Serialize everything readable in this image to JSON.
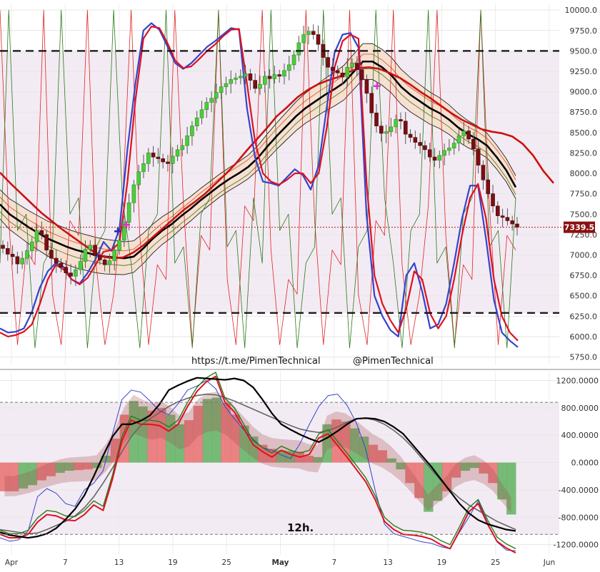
{
  "chart_data": [
    {
      "type": "candlestick",
      "timeframe_label": "12h.",
      "watermark_left": "https://t.me/PimenTechnical",
      "watermark_right": "@PimenTechnical",
      "last_price_label": "7339.5",
      "ylim": [
        5650,
        10080
      ],
      "y_ticks": [
        "10000.0",
        "9750.0",
        "9500.0",
        "9250.0",
        "9000.0",
        "8750.0",
        "8500.0",
        "8250.0",
        "8000.0",
        "7750.0",
        "7500.0",
        "7250.0",
        "7000.0",
        "6750.0",
        "6500.0",
        "6250.0",
        "6000.0",
        "5750.0"
      ],
      "y_tick_values": [
        10000,
        9750,
        9500,
        9250,
        9000,
        8750,
        8500,
        8250,
        8000,
        7750,
        7500,
        7250,
        7000,
        6750,
        6500,
        6250,
        6000,
        5750
      ],
      "x_ticks": [
        "Apr",
        "7",
        "13",
        "19",
        "25",
        "May",
        "7",
        "13",
        "19",
        "25",
        "Jun"
      ],
      "x_tick_days": [
        1,
        7,
        13,
        19,
        25,
        31,
        37,
        43,
        49,
        55,
        61
      ],
      "horizontal_levels": [
        9500,
        6290
      ],
      "last_price": 7339.5,
      "colors": {
        "up": "#4ccd3c",
        "down": "#7a0f14",
        "ma_black": "#000000",
        "ma_red": "#cc1111",
        "stoch_blue": "#3344cc",
        "stoch_red": "#dd1122",
        "green_line": "#2a7a1a",
        "zone": "#f3ebf3",
        "band_fill": "#f6dcc6"
      },
      "candles_close": [
        7080,
        7010,
        6980,
        6890,
        6960,
        7050,
        7160,
        7300,
        7250,
        7060,
        6960,
        6900,
        6850,
        6780,
        6740,
        6820,
        6920,
        7070,
        7120,
        6990,
        6940,
        6880,
        6930,
        7060,
        7180,
        7400,
        7640,
        7860,
        8020,
        8120,
        8250,
        8200,
        8180,
        8140,
        8120,
        8210,
        8290,
        8340,
        8460,
        8580,
        8680,
        8780,
        8870,
        8920,
        8990,
        9060,
        9100,
        9150,
        9170,
        9190,
        9220,
        9140,
        9040,
        9090,
        9190,
        9160,
        9210,
        9190,
        9260,
        9330,
        9450,
        9600,
        9700,
        9740,
        9700,
        9580,
        9420,
        9300,
        9260,
        9230,
        9180,
        9300,
        9350,
        9270,
        9150,
        8980,
        8740,
        8580,
        8490,
        8510,
        8570,
        8660,
        8640,
        8480,
        8440,
        8380,
        8340,
        8290,
        8200,
        8160,
        8220,
        8280,
        8310,
        8370,
        8460,
        8520,
        8420,
        8300,
        8100,
        7920,
        7750,
        7600,
        7480,
        7460,
        7420,
        7380,
        7339.5
      ],
      "series_names": [
        "upper band",
        "basis",
        "lower band",
        "MA red",
        "stoch blue",
        "stoch red",
        "spike red",
        "spike green"
      ],
      "basis": [
        7620,
        7500,
        7420,
        7340,
        7270,
        7200,
        7150,
        7100,
        7060,
        7030,
        7000,
        6980,
        6970,
        6960,
        6980,
        7080,
        7200,
        7300,
        7380,
        7480,
        7570,
        7670,
        7760,
        7850,
        7930,
        8000,
        8080,
        8190,
        8330,
        8460,
        8580,
        8700,
        8800,
        8880,
        8960,
        9030,
        9110,
        9240,
        9370,
        9370,
        9300,
        9200,
        9060,
        8960,
        8880,
        8800,
        8740,
        8660,
        8560,
        8480,
        8420,
        8340,
        8200,
        8040,
        7830
      ],
      "ma_red": [
        8010,
        7880,
        7760,
        7640,
        7520,
        7420,
        7320,
        7230,
        7140,
        7050,
        6980,
        6960,
        6970,
        7030,
        7120,
        7230,
        7340,
        7450,
        7560,
        7650,
        7750,
        7870,
        7990,
        8120,
        8270,
        8410,
        8550,
        8700,
        8810,
        8930,
        9020,
        9090,
        9140,
        9180,
        9240,
        9290,
        9300,
        9280,
        9230,
        9170,
        9090,
        9000,
        8920,
        8830,
        8740,
        8660,
        8600,
        8540,
        8510,
        8490,
        8450,
        8360,
        8220,
        8030,
        7880
      ],
      "stoch_blue": [
        6100,
        6050,
        6060,
        6100,
        6300,
        6600,
        6800,
        6900,
        6850,
        6700,
        6650,
        6780,
        6950,
        7160,
        7050,
        7320,
        8300,
        9100,
        9750,
        9840,
        9760,
        9560,
        9350,
        9280,
        9350,
        9450,
        9550,
        9620,
        9700,
        9780,
        9760,
        8800,
        8200,
        7900,
        7880,
        7850,
        7950,
        8050,
        7980,
        7800,
        8100,
        8800,
        9480,
        9700,
        9720,
        9540,
        7500,
        6500,
        6250,
        6080,
        6000,
        6750,
        6900,
        6550,
        6100,
        6150,
        6400,
        6900,
        7450,
        7850,
        7850,
        7200,
        6450,
        6050,
        5950,
        5870
      ],
      "stoch_red": [
        6050,
        6000,
        6020,
        6060,
        6150,
        6400,
        6700,
        6880,
        6820,
        6700,
        6640,
        6720,
        6880,
        7040,
        7060,
        7150,
        7900,
        8900,
        9650,
        9800,
        9780,
        9600,
        9380,
        9290,
        9310,
        9400,
        9500,
        9580,
        9680,
        9760,
        9770,
        9100,
        8400,
        8000,
        7900,
        7860,
        7920,
        8000,
        8000,
        7880,
        8000,
        8550,
        9300,
        9620,
        9700,
        9650,
        7900,
        6750,
        6400,
        6200,
        6050,
        6350,
        6800,
        6700,
        6280,
        6100,
        6250,
        6700,
        7250,
        7700,
        7870,
        7450,
        6700,
        6250,
        6050,
        5950
      ],
      "oscillator": {
        "ylim": [
          -1350,
          1320
        ],
        "y_ticks": [
          "1200.0000",
          "800.0000",
          "400.0000",
          "0.0000",
          "-400.0000",
          "-800.0000",
          "-1200.0000"
        ],
        "y_tick_values": [
          1200,
          800,
          400,
          0,
          -400,
          -800,
          -1200
        ],
        "levels": [
          880,
          -1050
        ],
        "histogram": [
          -420,
          -420,
          -380,
          -330,
          -260,
          -200,
          -150,
          -120,
          -110,
          -100,
          -80,
          100,
          350,
          700,
          900,
          820,
          760,
          800,
          700,
          560,
          620,
          830,
          930,
          950,
          870,
          700,
          540,
          380,
          260,
          200,
          180,
          170,
          160,
          100,
          80,
          560,
          630,
          600,
          500,
          380,
          260,
          180,
          60,
          -100,
          -300,
          -520,
          -720,
          -560,
          -420,
          -220,
          -120,
          -80,
          -160,
          -300,
          -540,
          -760
        ],
        "black_line": [
          -1020,
          -1060,
          -1080,
          -1100,
          -1080,
          -1040,
          -960,
          -830,
          -680,
          -480,
          -200,
          100,
          380,
          560,
          560,
          610,
          690,
          850,
          1060,
          1130,
          1190,
          1240,
          1230,
          1220,
          1210,
          1230,
          1200,
          1100,
          920,
          720,
          560,
          480,
          410,
          350,
          300,
          370,
          460,
          560,
          640,
          650,
          640,
          600,
          520,
          420,
          260,
          100,
          -60,
          -240,
          -420,
          -600,
          -740,
          -840,
          -900,
          -940,
          -980,
          -1000
        ],
        "osc_red": [
          -1050,
          -1100,
          -1100,
          -1050,
          -870,
          -760,
          -780,
          -840,
          -850,
          -760,
          -620,
          -700,
          -240,
          320,
          620,
          560,
          560,
          540,
          460,
          560,
          820,
          1040,
          1180,
          1260,
          880,
          740,
          500,
          260,
          160,
          80,
          180,
          120,
          80,
          120,
          360,
          420,
          250,
          80,
          -100,
          -280,
          -540,
          -860,
          -980,
          -1050,
          -1060,
          -1080,
          -1120,
          -1200,
          -1260,
          -1000,
          -720,
          -600,
          -900,
          -1150,
          -1250,
          -1320
        ],
        "osc_blue": [
          -1100,
          -1150,
          -1130,
          -1000,
          -500,
          -380,
          -450,
          -600,
          -640,
          -400,
          -300,
          -120,
          420,
          920,
          1060,
          1030,
          900,
          760,
          700,
          860,
          1060,
          1120,
          1200,
          1080,
          820,
          640,
          480,
          340,
          220,
          180,
          110,
          60,
          280,
          560,
          820,
          980,
          1000,
          840,
          580,
          200,
          -400,
          -900,
          -1040,
          -1080,
          -1120,
          -1160,
          -1180,
          -1230,
          -1260,
          -1020,
          -800,
          -560,
          -880,
          -1160,
          -1280,
          -1290
        ],
        "osc_gray": [
          -980,
          -1000,
          -1020,
          -1040,
          -1030,
          -980,
          -920,
          -860,
          -780,
          -660,
          -500,
          -300,
          -80,
          160,
          380,
          540,
          640,
          730,
          820,
          890,
          940,
          980,
          1000,
          990,
          950,
          900,
          840,
          780,
          720,
          660,
          600,
          540,
          490,
          460,
          440,
          470,
          520,
          590,
          640,
          650,
          620,
          560,
          470,
          360,
          220,
          60,
          -100,
          -260,
          -400,
          -520,
          -620,
          -700,
          -780,
          -860,
          -920,
          -980
        ]
      }
    }
  ]
}
